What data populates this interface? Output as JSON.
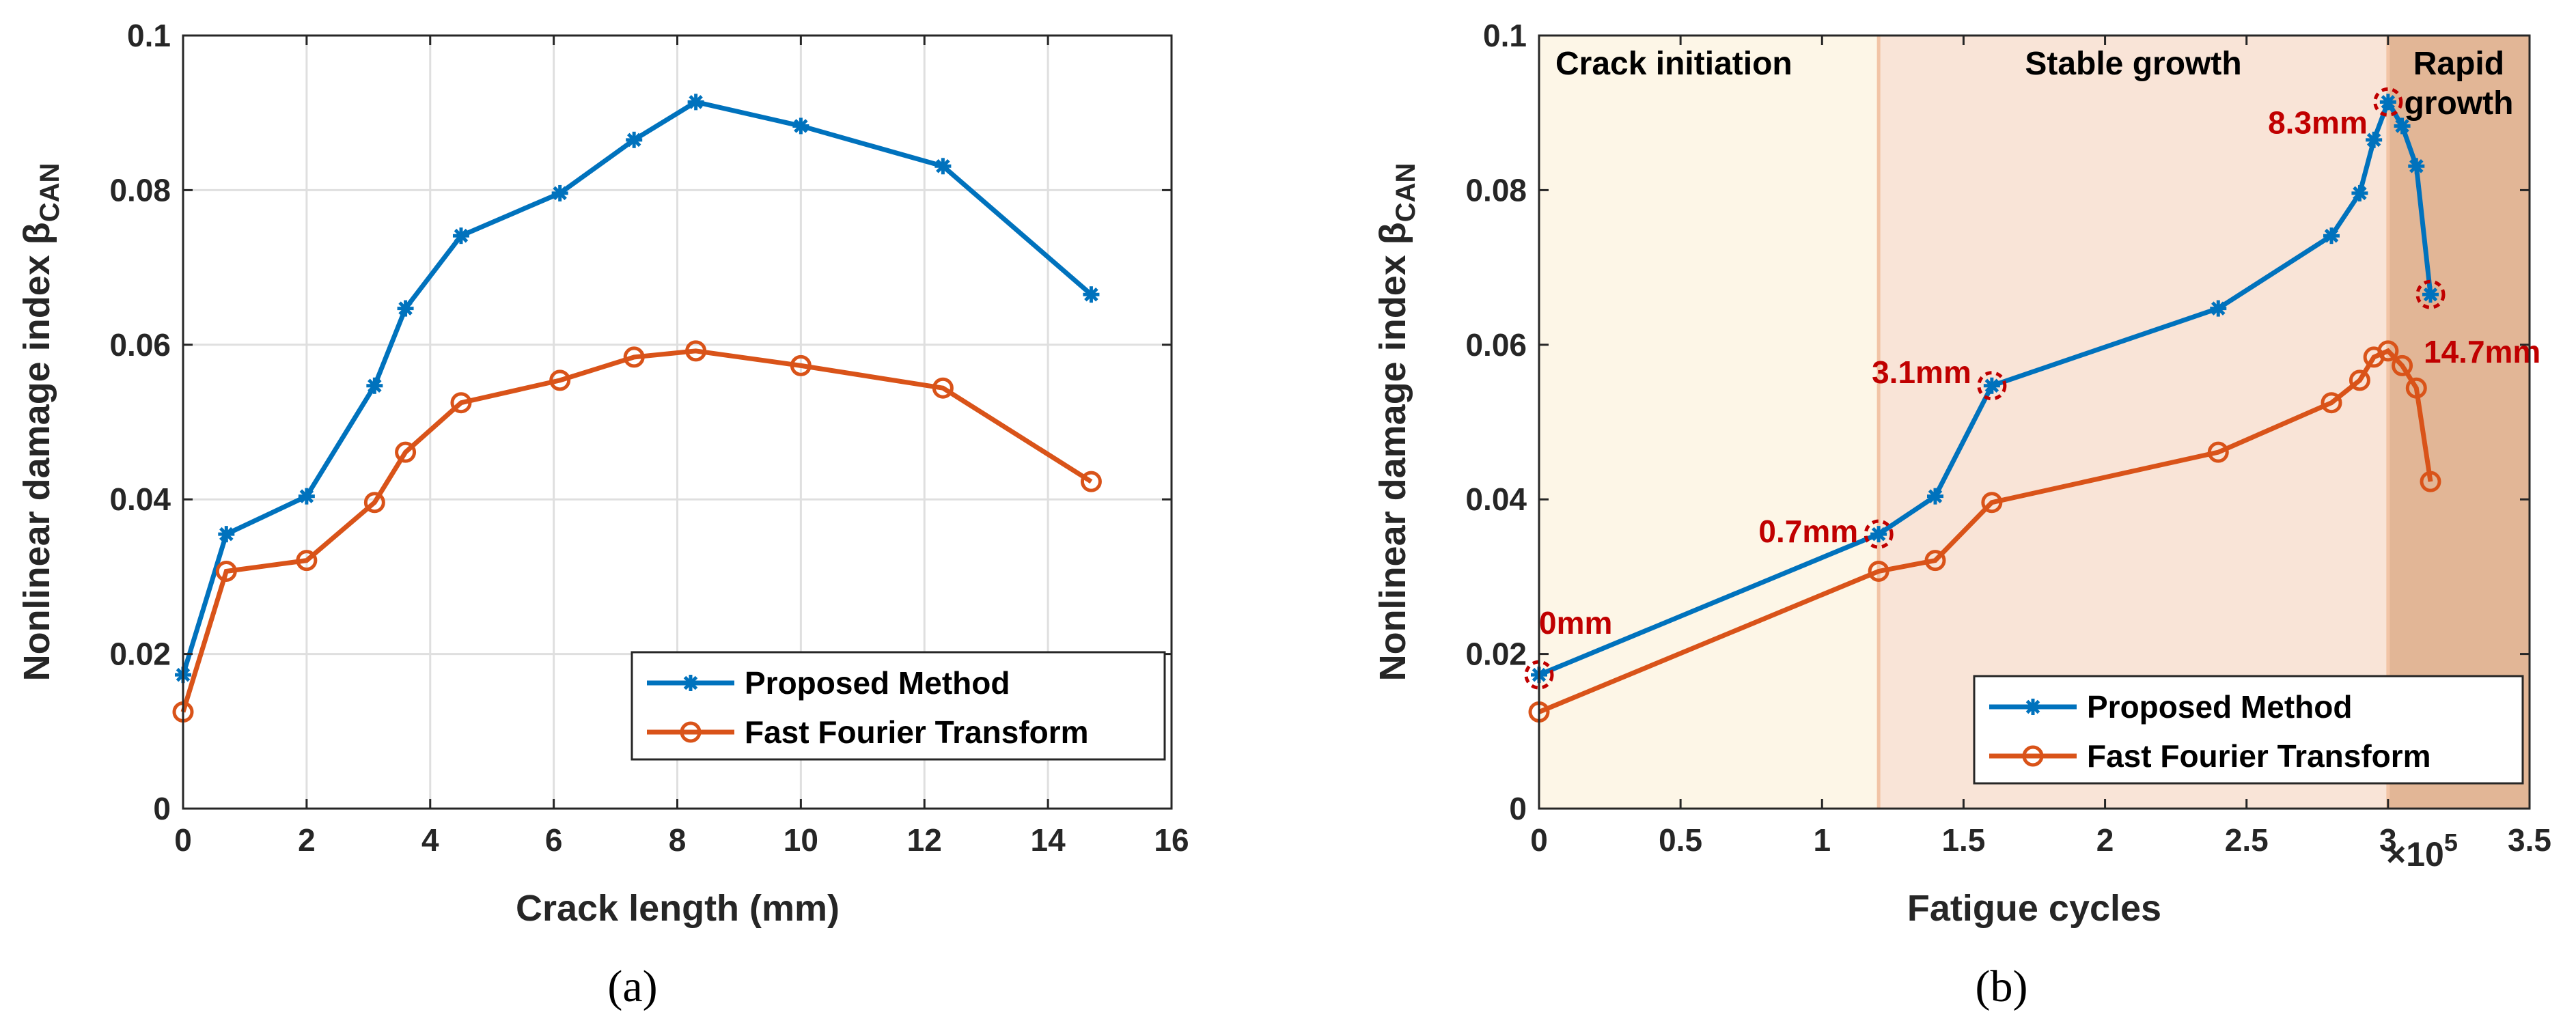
{
  "chart_data": [
    {
      "type": "line",
      "caption": "(a)",
      "xlabel": "Crack length (mm)",
      "ylabel": "Nonlinear damage index β",
      "ylabel_subscript": "CAN",
      "xlim": [
        0,
        16
      ],
      "ylim": [
        0,
        0.1
      ],
      "xticks": [
        "0",
        "2",
        "4",
        "6",
        "8",
        "10",
        "12",
        "14",
        "16"
      ],
      "yticks": [
        "0",
        "0.02",
        "0.04",
        "0.06",
        "0.08",
        "0.1"
      ],
      "grid": true,
      "legend": "bottom-right",
      "x": [
        0,
        0.7,
        2,
        3.1,
        3.6,
        4.5,
        6.1,
        7.3,
        8.3,
        10,
        12.3,
        14.7
      ],
      "series": [
        {
          "name": "Proposed Method",
          "color": "#0072BD",
          "marker": "asterisk",
          "values": [
            0.0173,
            0.0355,
            0.0404,
            0.0547,
            0.0647,
            0.0741,
            0.0796,
            0.0865,
            0.0914,
            0.0883,
            0.0831,
            0.0665
          ]
        },
        {
          "name": "Fast Fourier Transform",
          "color": "#D95319",
          "marker": "circle",
          "values": [
            0.0125,
            0.0307,
            0.0321,
            0.0396,
            0.0461,
            0.0525,
            0.0554,
            0.0584,
            0.0592,
            0.0573,
            0.0544,
            0.0423
          ]
        }
      ]
    },
    {
      "type": "line",
      "caption": "(b)",
      "xlabel": "Fatigue cycles",
      "ylabel": "Nonlinear damage index β",
      "ylabel_subscript": "CAN",
      "xlim": [
        0,
        3.5
      ],
      "ylim": [
        0,
        0.1
      ],
      "x_multiplier_base": "×10",
      "x_multiplier_exp": "5",
      "xticks": [
        "0",
        "0.5",
        "1",
        "1.5",
        "2",
        "2.5",
        "3",
        "3.5"
      ],
      "yticks": [
        "0",
        "0.02",
        "0.04",
        "0.06",
        "0.08",
        "0.1"
      ],
      "grid": false,
      "legend": "bottom-right",
      "regions": [
        {
          "label_lines": [
            "Crack initiation"
          ],
          "x_start": 0,
          "x_end": 1.2,
          "color": "#FDF6E7"
        },
        {
          "label_lines": [
            "Stable growth"
          ],
          "x_start": 1.2,
          "x_end": 3.0,
          "color": "#F9E4D7"
        },
        {
          "label_lines": [
            "Rapid",
            "growth"
          ],
          "x_start": 3.0,
          "x_end": 3.5,
          "color": "#E2B696"
        }
      ],
      "region_border_color": "#F2C4A6",
      "x": [
        0,
        1.2,
        1.4,
        1.6,
        2.4,
        2.8,
        2.9,
        2.95,
        3.0,
        3.05,
        3.1,
        3.15
      ],
      "series": [
        {
          "name": "Proposed Method",
          "color": "#0072BD",
          "marker": "asterisk",
          "values": [
            0.0173,
            0.0355,
            0.0404,
            0.0547,
            0.0647,
            0.0741,
            0.0796,
            0.0865,
            0.0914,
            0.0883,
            0.0831,
            0.0665
          ]
        },
        {
          "name": "Fast Fourier Transform",
          "color": "#D95319",
          "marker": "circle",
          "values": [
            0.0125,
            0.0307,
            0.0321,
            0.0396,
            0.0461,
            0.0525,
            0.0554,
            0.0584,
            0.0592,
            0.0573,
            0.0544,
            0.0423
          ]
        }
      ],
      "annotations": [
        {
          "text": "0mm",
          "x": 0,
          "y": 0.0173
        },
        {
          "text": "0.7mm",
          "x": 1.2,
          "y": 0.0355
        },
        {
          "text": "3.1mm",
          "x": 1.6,
          "y": 0.0547
        },
        {
          "text": "8.3mm",
          "x": 3.0,
          "y": 0.0914
        },
        {
          "text": "14.7mm",
          "x": 3.15,
          "y": 0.0665
        }
      ],
      "annotation_color": "#C00000"
    }
  ]
}
